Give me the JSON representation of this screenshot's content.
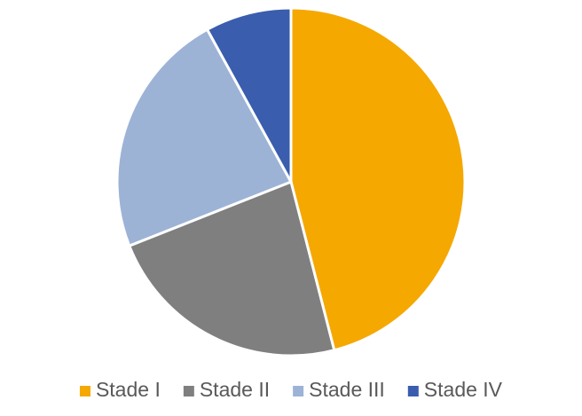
{
  "chart_data": {
    "type": "pie",
    "categories": [
      "Stade I",
      "Stade II",
      "Stade III",
      "Stade IV"
    ],
    "values": [
      46,
      23,
      23,
      8
    ],
    "colors": [
      "#f5a800",
      "#7f7f7f",
      "#9cb3d6",
      "#3a5dad"
    ],
    "legend": "bottom"
  }
}
